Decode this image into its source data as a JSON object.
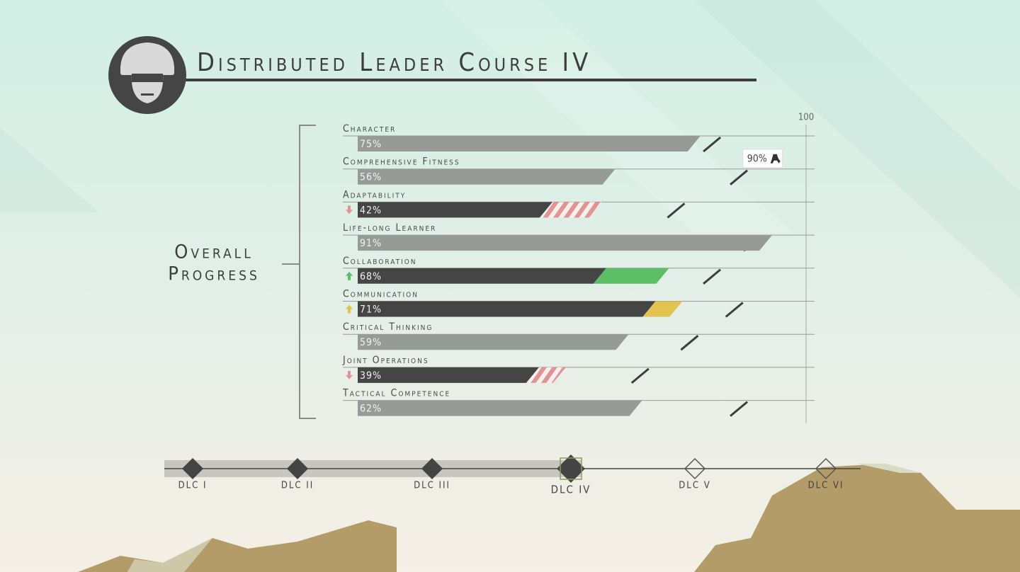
{
  "header": {
    "title": "Distributed Leader Course IV"
  },
  "chart_data": {
    "type": "bar",
    "label": [
      "Overall",
      "Progress"
    ],
    "categories": [
      "Character",
      "Comprehensive Fitness",
      "Adaptability",
      "Life-long Learner",
      "Collaboration",
      "Communication",
      "Critical Thinking",
      "Joint Operations",
      "Tactical Competence"
    ],
    "values": [
      75,
      56,
      42,
      91,
      68,
      71,
      59,
      39,
      62
    ],
    "value_labels": [
      "75%",
      "56%",
      "42%",
      "91%",
      "68%",
      "71%",
      "59%",
      "39%",
      "62%"
    ],
    "previous": [
      null,
      null,
      53,
      null,
      54,
      65,
      null,
      45,
      null
    ],
    "targets": [
      79,
      85,
      71,
      88,
      79,
      84,
      74,
      63,
      85
    ],
    "color": "#969b98",
    "base_color": "#454545",
    "gain_colors": [
      null,
      null,
      null,
      null,
      "#5cbf66",
      "#e2c34f",
      null,
      null,
      null
    ],
    "loss_color": "#e29393",
    "callout": {
      "value": 90,
      "label": "90%",
      "row": 1
    },
    "xlim": [
      0,
      100
    ],
    "xticks": [
      100
    ]
  },
  "timeline": {
    "stages": [
      "DLC I",
      "DLC II",
      "DLC III",
      "DLC IV",
      "DLC V",
      "DLC VI"
    ],
    "current": 3
  }
}
